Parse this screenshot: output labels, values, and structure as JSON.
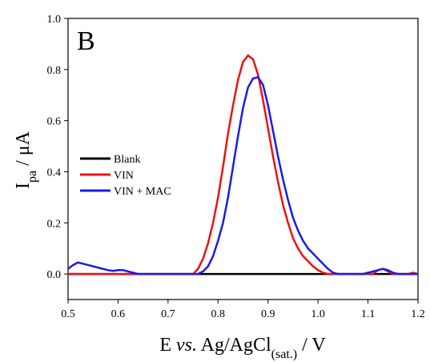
{
  "chart_data": {
    "type": "line",
    "annotation": "B",
    "ylabel": [
      {
        "text": "I"
      },
      {
        "text": "pa",
        "sub": true
      },
      {
        "text": " / μA"
      }
    ],
    "xlabel": [
      {
        "text": "E "
      },
      {
        "text": "vs.",
        "italic": true
      },
      {
        "text": " Ag/AgCl"
      },
      {
        "text": "(sat.)",
        "sub": true
      },
      {
        "text": " / V"
      }
    ],
    "xlim": [
      0.5,
      1.2
    ],
    "ylim": [
      -0.1,
      1.0
    ],
    "xticks": [
      0.5,
      0.6,
      0.7,
      0.8,
      0.9,
      {
        "value": 1.0,
        "label": "1.0"
      },
      1.1,
      1.2
    ],
    "yticks": [
      {
        "value": 0,
        "label": "0.0"
      },
      0.2,
      0.4,
      0.6,
      0.8,
      {
        "value": 1.0,
        "label": "1.0"
      }
    ],
    "legend": "left",
    "x": [
      0.5,
      0.51,
      0.52,
      0.53,
      0.54,
      0.55,
      0.56,
      0.57,
      0.58,
      0.59,
      0.6,
      0.61,
      0.62,
      0.63,
      0.64,
      0.65,
      0.66,
      0.67,
      0.68,
      0.69,
      0.7,
      0.71,
      0.72,
      0.73,
      0.74,
      0.75,
      0.76,
      0.77,
      0.78,
      0.79,
      0.8,
      0.81,
      0.82,
      0.83,
      0.84,
      0.85,
      0.86,
      0.87,
      0.88,
      0.89,
      0.9,
      0.91,
      0.92,
      0.93,
      0.94,
      0.95,
      0.96,
      0.97,
      0.98,
      0.99,
      1.0,
      1.01,
      1.02,
      1.03,
      1.04,
      1.05,
      1.06,
      1.07,
      1.08,
      1.09,
      1.1,
      1.11,
      1.12,
      1.13,
      1.14,
      1.15,
      1.16,
      1.17,
      1.18,
      1.19,
      1.2
    ],
    "series": [
      {
        "name": "Blank",
        "color": "#000000",
        "values": [
          0,
          0,
          0,
          0,
          0,
          0,
          0,
          0,
          0,
          0,
          0,
          0,
          0,
          0,
          0,
          0,
          0,
          0,
          0,
          0,
          0,
          0,
          0,
          0,
          0,
          0,
          0,
          0,
          0,
          0,
          0,
          0,
          0,
          0,
          0,
          0,
          0,
          0,
          0,
          0,
          0,
          0,
          0,
          0,
          0,
          0,
          0,
          0,
          0,
          0,
          0,
          0,
          0,
          0,
          0,
          0,
          0,
          0,
          0,
          0,
          0,
          0,
          0,
          0,
          0,
          0,
          0,
          0,
          0,
          0,
          0
        ]
      },
      {
        "name": "VIN",
        "color": "#ee1111",
        "values": [
          0,
          0,
          0,
          0,
          0,
          0,
          0,
          0,
          0,
          0,
          0,
          0,
          0,
          0,
          0,
          0,
          0,
          0,
          0,
          0,
          0,
          0,
          0,
          0,
          0,
          0,
          0.02,
          0.06,
          0.12,
          0.2,
          0.3,
          0.42,
          0.55,
          0.66,
          0.76,
          0.83,
          0.855,
          0.84,
          0.78,
          0.68,
          0.57,
          0.46,
          0.36,
          0.27,
          0.2,
          0.14,
          0.1,
          0.07,
          0.05,
          0.03,
          0.015,
          0.005,
          0,
          0,
          0,
          0,
          0,
          0,
          0,
          0,
          0,
          0,
          0.015,
          0.02,
          0.01,
          0,
          0,
          0,
          0,
          0.005,
          0
        ]
      },
      {
        "name": "VIN + MAC",
        "color": "#1a1aee",
        "values": [
          0.02,
          0.035,
          0.045,
          0.04,
          0.035,
          0.03,
          0.025,
          0.02,
          0.015,
          0.012,
          0.015,
          0.015,
          0.01,
          0.005,
          0,
          0,
          0,
          0,
          0,
          0,
          0,
          0,
          0,
          0,
          0,
          0,
          0,
          0.01,
          0.03,
          0.07,
          0.13,
          0.2,
          0.3,
          0.42,
          0.54,
          0.65,
          0.73,
          0.765,
          0.77,
          0.74,
          0.66,
          0.56,
          0.46,
          0.37,
          0.29,
          0.22,
          0.17,
          0.13,
          0.1,
          0.08,
          0.06,
          0.04,
          0.02,
          0.005,
          0,
          0,
          0,
          0,
          0,
          0,
          0.005,
          0.01,
          0.015,
          0.02,
          0.015,
          0.005,
          0,
          0,
          0,
          0,
          0
        ]
      }
    ]
  }
}
